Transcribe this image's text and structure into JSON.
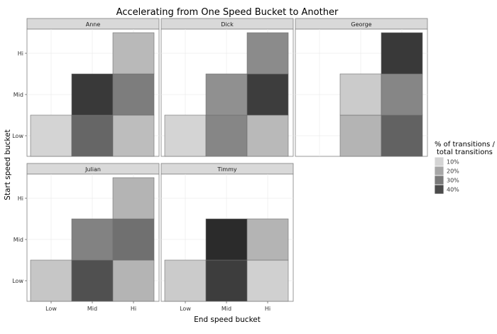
{
  "chart_data": {
    "type": "heatmap",
    "title": "Accelerating from One Speed Bucket to Another",
    "xlabel": "End speed bucket",
    "ylabel": "Start speed bucket",
    "x_categories": [
      "Low",
      "Mid",
      "Hi"
    ],
    "y_categories": [
      "Low",
      "Mid",
      "Hi"
    ],
    "legend": {
      "title_line1": "% of transitions /",
      "title_line2": "total transitions",
      "position": "right",
      "items": [
        {
          "label": "10%",
          "value": 0.1
        },
        {
          "label": "20%",
          "value": 0.2
        },
        {
          "label": "30%",
          "value": 0.3
        },
        {
          "label": "40%",
          "value": 0.4
        }
      ]
    },
    "colors": {
      "low": "#ebebeb",
      "high": "#2b2b2b",
      "panel_bg": "#ffffff",
      "strip_bg": "#d9d9d9",
      "grid": "#ebebeb",
      "border": "#7f7f7f"
    },
    "value_range": [
      0.05,
      0.47
    ],
    "grid": true,
    "panels": [
      {
        "name": "Anne",
        "cells": [
          {
            "start": "Low",
            "end": "Low",
            "value": 0.1
          },
          {
            "start": "Low",
            "end": "Mid",
            "value": 0.34
          },
          {
            "start": "Low",
            "end": "Hi",
            "value": 0.15
          },
          {
            "start": "Mid",
            "end": "Mid",
            "value": 0.44
          },
          {
            "start": "Mid",
            "end": "Hi",
            "value": 0.29
          },
          {
            "start": "Hi",
            "end": "Hi",
            "value": 0.16
          }
        ]
      },
      {
        "name": "Dick",
        "cells": [
          {
            "start": "Low",
            "end": "Low",
            "value": 0.1
          },
          {
            "start": "Low",
            "end": "Mid",
            "value": 0.27
          },
          {
            "start": "Low",
            "end": "Hi",
            "value": 0.16
          },
          {
            "start": "Mid",
            "end": "Mid",
            "value": 0.25
          },
          {
            "start": "Mid",
            "end": "Hi",
            "value": 0.43
          },
          {
            "start": "Hi",
            "end": "Hi",
            "value": 0.26
          }
        ]
      },
      {
        "name": "George",
        "cells": [
          {
            "start": "Low",
            "end": "Mid",
            "value": 0.17
          },
          {
            "start": "Low",
            "end": "Hi",
            "value": 0.35
          },
          {
            "start": "Mid",
            "end": "Mid",
            "value": 0.12
          },
          {
            "start": "Mid",
            "end": "Hi",
            "value": 0.27
          },
          {
            "start": "Hi",
            "end": "Hi",
            "value": 0.44
          }
        ]
      },
      {
        "name": "Julian",
        "cells": [
          {
            "start": "Low",
            "end": "Low",
            "value": 0.13
          },
          {
            "start": "Low",
            "end": "Mid",
            "value": 0.39
          },
          {
            "start": "Low",
            "end": "Hi",
            "value": 0.17
          },
          {
            "start": "Mid",
            "end": "Mid",
            "value": 0.28
          },
          {
            "start": "Mid",
            "end": "Hi",
            "value": 0.32
          },
          {
            "start": "Hi",
            "end": "Hi",
            "value": 0.17
          }
        ]
      },
      {
        "name": "Timmy",
        "cells": [
          {
            "start": "Low",
            "end": "Low",
            "value": 0.12
          },
          {
            "start": "Low",
            "end": "Mid",
            "value": 0.43
          },
          {
            "start": "Low",
            "end": "Hi",
            "value": 0.11
          },
          {
            "start": "Mid",
            "end": "Mid",
            "value": 0.47
          },
          {
            "start": "Mid",
            "end": "Hi",
            "value": 0.17
          }
        ]
      }
    ]
  }
}
